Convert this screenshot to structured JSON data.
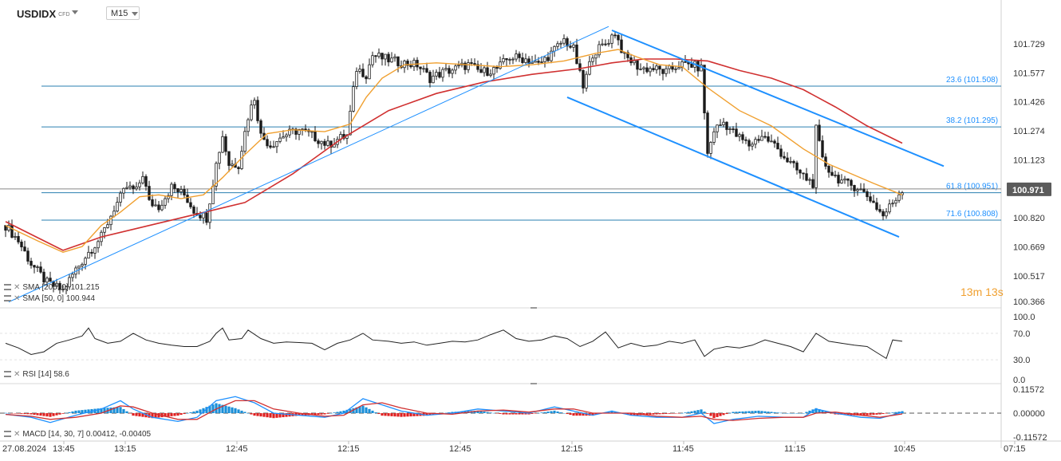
{
  "symbol": "USDIDX",
  "symbol_type": "CFD",
  "timeframe": "M15",
  "timer": {
    "minutes": "13",
    "min_unit": "m",
    "seconds": "13",
    "sec_unit": "s"
  },
  "colors": {
    "candle": "#1a1a1a",
    "sma200": "#d03030",
    "sma50": "#f0a030",
    "trend": "#1e90ff",
    "fib": "#2a7fb0",
    "fib_label": "#1e90ff",
    "price_badge": "#5b5b5b",
    "macd_pos": "#1a8fd8",
    "macd_neg": "#e02020",
    "macd_line": "#1e90ff",
    "signal_line": "#d03030"
  },
  "chart_data": [
    {
      "type": "candlestick",
      "name": "USDIDX",
      "ylim": [
        100.366,
        101.85
      ],
      "y_ticks": [
        "101.729",
        "101.577",
        "101.426",
        "101.274",
        "101.123",
        "100.971",
        "100.820",
        "100.669",
        "100.517",
        "100.366"
      ],
      "last_price": "100.971",
      "x_tick_labels": [
        "27.08.2024",
        "13:45",
        "13:15",
        "12:45",
        "12:15",
        "12:45",
        "12:15",
        "11:45",
        "11:15",
        "10:45",
        "07:15"
      ],
      "fib_levels": [
        {
          "ratio": "23.6",
          "value": 101.508,
          "label": "23.6 (101.508)"
        },
        {
          "ratio": "38.2",
          "value": 101.295,
          "label": "38.2 (101.295)"
        },
        {
          "ratio": "61.8",
          "value": 100.951,
          "label": "61.8 (100.951)"
        },
        {
          "ratio": "71.6",
          "value": 100.808,
          "label": "71.6 (100.808)"
        }
      ],
      "close_path": [
        [
          0,
          100.78
        ],
        [
          4,
          100.7
        ],
        [
          8,
          100.58
        ],
        [
          13,
          100.48
        ],
        [
          18,
          100.44
        ],
        [
          22,
          100.55
        ],
        [
          26,
          100.64
        ],
        [
          30,
          100.72
        ],
        [
          34,
          100.87
        ],
        [
          38,
          100.98
        ],
        [
          41,
          100.96
        ],
        [
          43,
          101.05
        ],
        [
          45,
          100.9
        ],
        [
          48,
          100.88
        ],
        [
          52,
          100.98
        ],
        [
          56,
          100.94
        ],
        [
          59,
          100.86
        ],
        [
          63,
          100.82
        ],
        [
          66,
          101.1
        ],
        [
          68,
          101.25
        ],
        [
          70,
          101.1
        ],
        [
          73,
          101.1
        ],
        [
          76,
          101.35
        ],
        [
          78,
          101.45
        ],
        [
          80,
          101.25
        ],
        [
          83,
          101.2
        ],
        [
          87,
          101.25
        ],
        [
          92,
          101.28
        ],
        [
          96,
          101.25
        ],
        [
          101,
          101.2
        ],
        [
          104,
          101.23
        ],
        [
          107,
          101.25
        ],
        [
          110,
          101.6
        ],
        [
          113,
          101.57
        ],
        [
          115,
          101.67
        ],
        [
          119,
          101.65
        ],
        [
          124,
          101.63
        ],
        [
          129,
          101.62
        ],
        [
          133,
          101.55
        ],
        [
          137,
          101.58
        ],
        [
          141,
          101.6
        ],
        [
          145,
          101.62
        ],
        [
          149,
          101.58
        ],
        [
          154,
          101.6
        ],
        [
          158,
          101.66
        ],
        [
          163,
          101.65
        ],
        [
          167,
          101.62
        ],
        [
          171,
          101.68
        ],
        [
          175,
          101.75
        ],
        [
          178,
          101.7
        ],
        [
          181,
          101.5
        ],
        [
          184,
          101.68
        ],
        [
          188,
          101.73
        ],
        [
          191,
          101.79
        ],
        [
          194,
          101.66
        ],
        [
          196,
          101.64
        ],
        [
          199,
          101.6
        ],
        [
          203,
          101.6
        ],
        [
          207,
          101.58
        ],
        [
          211,
          101.62
        ],
        [
          215,
          101.62
        ],
        [
          218,
          101.6
        ],
        [
          220,
          101.15
        ],
        [
          222,
          101.28
        ],
        [
          225,
          101.32
        ],
        [
          229,
          101.25
        ],
        [
          233,
          101.2
        ],
        [
          237,
          101.25
        ],
        [
          241,
          101.2
        ],
        [
          245,
          101.12
        ],
        [
          249,
          101.05
        ],
        [
          253,
          101.0
        ],
        [
          254,
          101.28
        ],
        [
          256,
          101.12
        ],
        [
          259,
          101.05
        ],
        [
          263,
          101.0
        ],
        [
          267,
          100.98
        ],
        [
          271,
          100.92
        ],
        [
          275,
          100.83
        ],
        [
          278,
          100.9
        ],
        [
          281,
          100.97
        ]
      ],
      "series": [
        {
          "name": "SMA [200, 0]",
          "value": 101.215,
          "values": [
            [
              0,
              100.8
            ],
            [
              12,
              100.7
            ],
            [
              18,
              100.65
            ],
            [
              30,
              100.72
            ],
            [
              45,
              100.78
            ],
            [
              60,
              100.84
            ],
            [
              75,
              100.9
            ],
            [
              90,
              101.05
            ],
            [
              105,
              101.23
            ],
            [
              120,
              101.38
            ],
            [
              135,
              101.47
            ],
            [
              150,
              101.53
            ],
            [
              165,
              101.57
            ],
            [
              180,
              101.6
            ],
            [
              190,
              101.63
            ],
            [
              200,
              101.65
            ],
            [
              210,
              101.65
            ],
            [
              220,
              101.64
            ],
            [
              230,
              101.59
            ],
            [
              240,
              101.55
            ],
            [
              250,
              101.49
            ],
            [
              260,
              101.4
            ],
            [
              270,
              101.3
            ],
            [
              281,
              101.21
            ]
          ]
        },
        {
          "name": "SMA [50, 0]",
          "value": 100.944,
          "values": [
            [
              0,
              100.78
            ],
            [
              10,
              100.7
            ],
            [
              18,
              100.64
            ],
            [
              24,
              100.67
            ],
            [
              30,
              100.78
            ],
            [
              36,
              100.85
            ],
            [
              42,
              100.93
            ],
            [
              48,
              100.94
            ],
            [
              55,
              100.92
            ],
            [
              62,
              100.94
            ],
            [
              68,
              101.03
            ],
            [
              75,
              101.15
            ],
            [
              82,
              101.26
            ],
            [
              90,
              101.28
            ],
            [
              100,
              101.27
            ],
            [
              108,
              101.31
            ],
            [
              113,
              101.45
            ],
            [
              118,
              101.55
            ],
            [
              125,
              101.62
            ],
            [
              135,
              101.63
            ],
            [
              145,
              101.62
            ],
            [
              155,
              101.61
            ],
            [
              165,
              101.62
            ],
            [
              175,
              101.64
            ],
            [
              185,
              101.68
            ],
            [
              192,
              101.7
            ],
            [
              198,
              101.66
            ],
            [
              205,
              101.62
            ],
            [
              212,
              101.61
            ],
            [
              220,
              101.5
            ],
            [
              230,
              101.38
            ],
            [
              240,
              101.3
            ],
            [
              250,
              101.18
            ],
            [
              258,
              101.1
            ],
            [
              265,
              101.05
            ],
            [
              272,
              101.0
            ],
            [
              281,
              100.94
            ]
          ]
        }
      ],
      "annotations": {
        "up_trend": [
          [
            1,
            100.38
          ],
          [
            189,
            101.82
          ]
        ],
        "down_channel_upper": [
          [
            190,
            101.8
          ],
          [
            294,
            101.09
          ]
        ],
        "down_channel_lower": [
          [
            176,
            101.45
          ],
          [
            280,
            100.72
          ]
        ]
      }
    },
    {
      "type": "line",
      "name": "RSI [14]",
      "value": 58.6,
      "ylim": [
        0,
        100
      ],
      "y_ticks": [
        "100.0",
        "70.0",
        "30.0",
        "0.0"
      ],
      "values": [
        [
          0,
          55
        ],
        [
          4,
          48
        ],
        [
          8,
          38
        ],
        [
          12,
          42
        ],
        [
          16,
          55
        ],
        [
          20,
          60
        ],
        [
          24,
          66
        ],
        [
          26,
          78
        ],
        [
          28,
          62
        ],
        [
          32,
          55
        ],
        [
          36,
          58
        ],
        [
          40,
          70
        ],
        [
          44,
          60
        ],
        [
          48,
          55
        ],
        [
          52,
          52
        ],
        [
          56,
          50
        ],
        [
          60,
          50
        ],
        [
          64,
          58
        ],
        [
          66,
          70
        ],
        [
          68,
          78
        ],
        [
          70,
          60
        ],
        [
          74,
          62
        ],
        [
          76,
          75
        ],
        [
          80,
          62
        ],
        [
          84,
          55
        ],
        [
          88,
          57
        ],
        [
          92,
          56
        ],
        [
          96,
          55
        ],
        [
          100,
          45
        ],
        [
          104,
          55
        ],
        [
          108,
          60
        ],
        [
          112,
          70
        ],
        [
          115,
          60
        ],
        [
          120,
          58
        ],
        [
          124,
          55
        ],
        [
          128,
          57
        ],
        [
          132,
          52
        ],
        [
          136,
          55
        ],
        [
          140,
          58
        ],
        [
          144,
          57
        ],
        [
          148,
          60
        ],
        [
          152,
          68
        ],
        [
          156,
          75
        ],
        [
          160,
          62
        ],
        [
          164,
          58
        ],
        [
          168,
          60
        ],
        [
          172,
          66
        ],
        [
          176,
          62
        ],
        [
          180,
          50
        ],
        [
          184,
          58
        ],
        [
          188,
          72
        ],
        [
          192,
          48
        ],
        [
          196,
          55
        ],
        [
          200,
          50
        ],
        [
          204,
          52
        ],
        [
          208,
          58
        ],
        [
          212,
          55
        ],
        [
          216,
          60
        ],
        [
          219,
          35
        ],
        [
          222,
          46
        ],
        [
          226,
          50
        ],
        [
          230,
          48
        ],
        [
          234,
          52
        ],
        [
          238,
          60
        ],
        [
          242,
          55
        ],
        [
          246,
          50
        ],
        [
          250,
          42
        ],
        [
          254,
          70
        ],
        [
          258,
          58
        ],
        [
          262,
          55
        ],
        [
          266,
          52
        ],
        [
          270,
          50
        ],
        [
          274,
          38
        ],
        [
          276,
          32
        ],
        [
          278,
          60
        ],
        [
          281,
          58
        ]
      ]
    },
    {
      "type": "bar+line",
      "name": "MACD [14, 30, 7]",
      "macd_value": "0.00412",
      "signal_value": "-0.00405",
      "ylim": [
        -0.11572,
        0.11572
      ],
      "y_ticks": [
        "0.11572",
        "0.00000",
        "-0.11572"
      ],
      "macd": [
        [
          0,
          -0.005
        ],
        [
          8,
          -0.02
        ],
        [
          14,
          -0.045
        ],
        [
          22,
          -0.01
        ],
        [
          30,
          0.02
        ],
        [
          36,
          0.06
        ],
        [
          40,
          0.02
        ],
        [
          46,
          -0.02
        ],
        [
          54,
          -0.04
        ],
        [
          60,
          -0.02
        ],
        [
          66,
          0.06
        ],
        [
          72,
          0.08
        ],
        [
          78,
          0.05
        ],
        [
          84,
          0.0
        ],
        [
          92,
          -0.01
        ],
        [
          100,
          -0.02
        ],
        [
          106,
          0.0
        ],
        [
          112,
          0.07
        ],
        [
          118,
          0.04
        ],
        [
          124,
          0.01
        ],
        [
          132,
          -0.01
        ],
        [
          140,
          0.0
        ],
        [
          148,
          0.02
        ],
        [
          156,
          0.01
        ],
        [
          164,
          0.0
        ],
        [
          172,
          0.03
        ],
        [
          178,
          0.01
        ],
        [
          184,
          -0.01
        ],
        [
          190,
          0.01
        ],
        [
          196,
          -0.01
        ],
        [
          204,
          -0.02
        ],
        [
          212,
          -0.02
        ],
        [
          218,
          0.0
        ],
        [
          222,
          -0.05
        ],
        [
          228,
          -0.03
        ],
        [
          236,
          -0.015
        ],
        [
          244,
          -0.02
        ],
        [
          250,
          -0.02
        ],
        [
          254,
          0.02
        ],
        [
          260,
          0.0
        ],
        [
          268,
          -0.02
        ],
        [
          274,
          -0.025
        ],
        [
          281,
          0.004
        ]
      ],
      "signal": [
        [
          0,
          -0.006
        ],
        [
          8,
          -0.015
        ],
        [
          14,
          -0.03
        ],
        [
          22,
          -0.02
        ],
        [
          30,
          0.0
        ],
        [
          36,
          0.035
        ],
        [
          40,
          0.03
        ],
        [
          46,
          0.0
        ],
        [
          54,
          -0.03
        ],
        [
          60,
          -0.03
        ],
        [
          66,
          0.02
        ],
        [
          72,
          0.06
        ],
        [
          78,
          0.06
        ],
        [
          84,
          0.02
        ],
        [
          92,
          0.0
        ],
        [
          100,
          -0.015
        ],
        [
          106,
          -0.01
        ],
        [
          112,
          0.04
        ],
        [
          118,
          0.05
        ],
        [
          124,
          0.025
        ],
        [
          132,
          0.0
        ],
        [
          140,
          -0.005
        ],
        [
          148,
          0.01
        ],
        [
          156,
          0.015
        ],
        [
          164,
          0.005
        ],
        [
          172,
          0.02
        ],
        [
          178,
          0.02
        ],
        [
          184,
          0.0
        ],
        [
          190,
          0.0
        ],
        [
          196,
          0.0
        ],
        [
          204,
          -0.015
        ],
        [
          212,
          -0.02
        ],
        [
          218,
          -0.015
        ],
        [
          222,
          -0.03
        ],
        [
          228,
          -0.035
        ],
        [
          236,
          -0.025
        ],
        [
          244,
          -0.02
        ],
        [
          250,
          -0.02
        ],
        [
          254,
          0.0
        ],
        [
          260,
          0.005
        ],
        [
          268,
          -0.01
        ],
        [
          274,
          -0.02
        ],
        [
          281,
          -0.004
        ]
      ]
    }
  ]
}
